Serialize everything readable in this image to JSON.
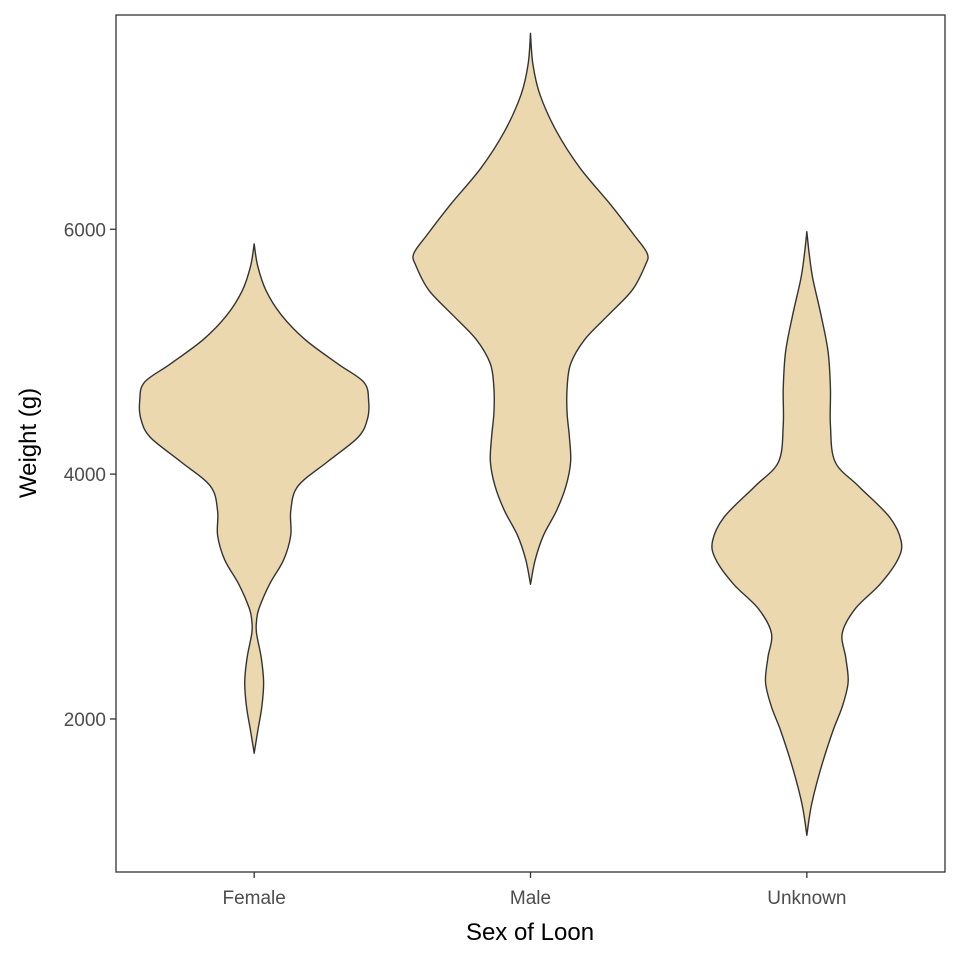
{
  "chart_data": {
    "type": "violin",
    "xlabel": "Sex of Loon",
    "ylabel": "Weight (g)",
    "categories": [
      "Female",
      "Male",
      "Unknown"
    ],
    "yticks": [
      2000,
      4000,
      6000
    ],
    "ylim": [
      750,
      7750
    ],
    "grid": false,
    "legend": "none",
    "fill_color": "#ECD8AF",
    "outline_color": "#333333",
    "violins": [
      {
        "category": "Female",
        "min": 1720,
        "max": 5880,
        "density": [
          [
            1720,
            0.0
          ],
          [
            1900,
            0.03
          ],
          [
            2100,
            0.065
          ],
          [
            2300,
            0.08
          ],
          [
            2500,
            0.06
          ],
          [
            2700,
            0.02
          ],
          [
            2800,
            0.02
          ],
          [
            2900,
            0.04
          ],
          [
            3100,
            0.13
          ],
          [
            3300,
            0.25
          ],
          [
            3500,
            0.31
          ],
          [
            3700,
            0.31
          ],
          [
            3900,
            0.37
          ],
          [
            4100,
            0.62
          ],
          [
            4300,
            0.88
          ],
          [
            4450,
            0.96
          ],
          [
            4600,
            0.97
          ],
          [
            4750,
            0.93
          ],
          [
            4900,
            0.71
          ],
          [
            5100,
            0.43
          ],
          [
            5300,
            0.23
          ],
          [
            5500,
            0.1
          ],
          [
            5700,
            0.03
          ],
          [
            5880,
            0.0
          ]
        ]
      },
      {
        "category": "Male",
        "min": 3100,
        "max": 7600,
        "density": [
          [
            3100,
            0.0
          ],
          [
            3300,
            0.04
          ],
          [
            3500,
            0.11
          ],
          [
            3700,
            0.22
          ],
          [
            3900,
            0.3
          ],
          [
            4100,
            0.34
          ],
          [
            4300,
            0.33
          ],
          [
            4500,
            0.31
          ],
          [
            4700,
            0.31
          ],
          [
            4900,
            0.34
          ],
          [
            5100,
            0.46
          ],
          [
            5300,
            0.66
          ],
          [
            5500,
            0.86
          ],
          [
            5700,
            0.97
          ],
          [
            5800,
            0.99
          ],
          [
            5950,
            0.88
          ],
          [
            6200,
            0.68
          ],
          [
            6500,
            0.42
          ],
          [
            6800,
            0.22
          ],
          [
            7100,
            0.08
          ],
          [
            7350,
            0.02
          ],
          [
            7600,
            0.0
          ]
        ]
      },
      {
        "category": "Unknown",
        "min": 1050,
        "max": 5980,
        "density": [
          [
            1050,
            0.0
          ],
          [
            1300,
            0.04
          ],
          [
            1600,
            0.12
          ],
          [
            1900,
            0.22
          ],
          [
            2100,
            0.3
          ],
          [
            2300,
            0.35
          ],
          [
            2500,
            0.33
          ],
          [
            2700,
            0.3
          ],
          [
            2900,
            0.41
          ],
          [
            3100,
            0.62
          ],
          [
            3300,
            0.77
          ],
          [
            3450,
            0.8
          ],
          [
            3650,
            0.7
          ],
          [
            3900,
            0.44
          ],
          [
            4100,
            0.24
          ],
          [
            4400,
            0.2
          ],
          [
            4700,
            0.2
          ],
          [
            5000,
            0.18
          ],
          [
            5300,
            0.12
          ],
          [
            5600,
            0.05
          ],
          [
            5800,
            0.02
          ],
          [
            5980,
            0.0
          ]
        ]
      }
    ]
  }
}
